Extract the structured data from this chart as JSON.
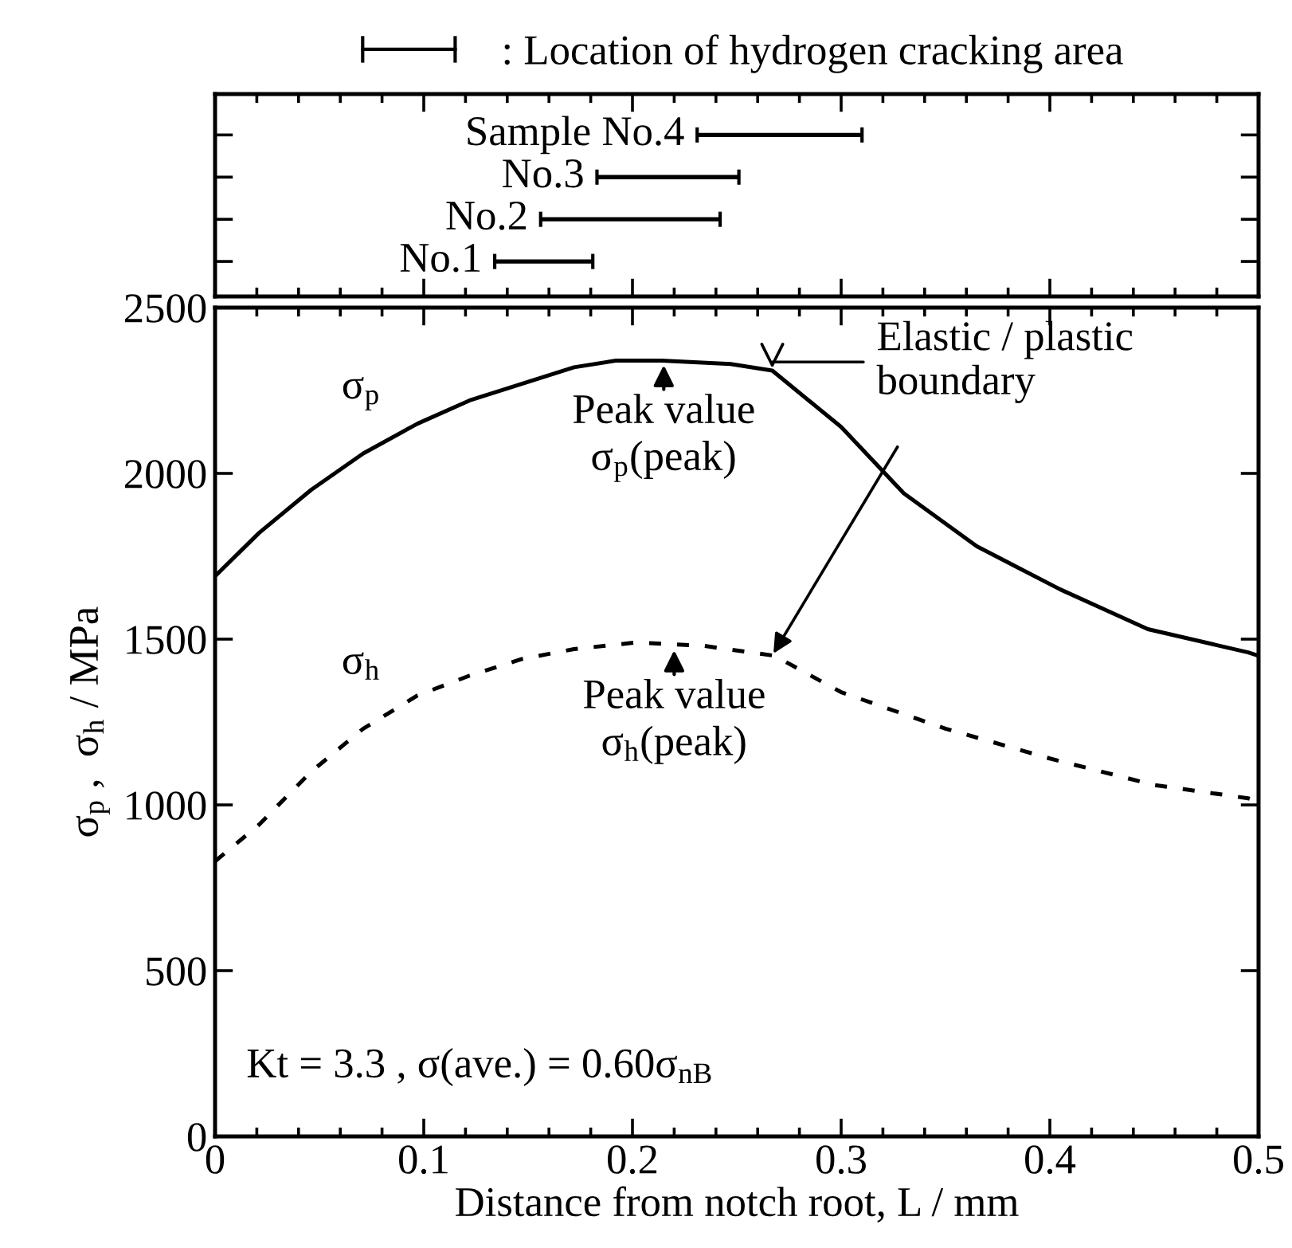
{
  "chart_data": [
    {
      "type": "bar",
      "orientation": "horizontal",
      "categories": [
        null,
        null,
        null,
        null
      ],
      "annotations": [
        {
          "text": "Sample No.4",
          "x": 0.231
        },
        {
          "text": "No.3",
          "x": 0.183
        },
        {
          "text": "No.2",
          "x": 0.156
        },
        {
          "text": "No.1",
          "x": 0.134
        }
      ],
      "series": [
        {
          "name": ": Location of hydrogen cracking area",
          "color": "#000000",
          "values": [
            0.079,
            0.068,
            0.086,
            0.047
          ],
          "base": [
            0.231,
            0.183,
            0.156,
            0.134
          ]
        }
      ],
      "xlim": [
        0,
        0.5
      ],
      "xticks": [
        0,
        0.1,
        0.2,
        0.3,
        0.4,
        0.5
      ],
      "tick_labels": false,
      "legend": "top",
      "grid": false
    },
    {
      "type": "line",
      "xlabel": "Distance from notch root, L / mm",
      "ylabel": "σ$_{p}$ ,  σ$_{h}$ / MPa",
      "series": [
        {
          "name": "σ$_{p}$",
          "color": "#000000",
          "line_style": "solid",
          "x": [
            0,
            0.021,
            0.046,
            0.071,
            0.097,
            0.122,
            0.147,
            0.172,
            0.192,
            0.214,
            0.247,
            0.267,
            0.3,
            0.33,
            0.365,
            0.405,
            0.447,
            0.495,
            0.5
          ],
          "values": [
            1690,
            1820,
            1950,
            2060,
            2150,
            2220,
            2270,
            2320,
            2340,
            2340,
            2330,
            2310,
            2140,
            1940,
            1780,
            1650,
            1530,
            1460,
            1450
          ]
        },
        {
          "name": "σ$_{h}$",
          "color": "#000000",
          "line_style": "dashed",
          "x": [
            0,
            0.021,
            0.046,
            0.071,
            0.097,
            0.122,
            0.147,
            0.172,
            0.202,
            0.234,
            0.268,
            0.3,
            0.35,
            0.4,
            0.45,
            0.495,
            0.5
          ],
          "values": [
            830,
            940,
            1100,
            1230,
            1330,
            1390,
            1440,
            1470,
            1490,
            1480,
            1450,
            1340,
            1230,
            1140,
            1060,
            1020,
            1010
          ]
        }
      ],
      "marker": "none",
      "grid": false,
      "legend": false,
      "xlim": [
        0,
        0.5
      ],
      "xticks": [
        0,
        0.1,
        0.2,
        0.3,
        0.4,
        0.5
      ],
      "ylim": [
        0,
        2500
      ],
      "yticks": [
        0,
        500,
        1000,
        1500,
        2000,
        2500
      ],
      "annotations": [
        {
          "text": "Peak value\nσ$_{p}$(peak)",
          "x": 0.215,
          "y": 2340
        },
        {
          "text": "Peak value\nσ$_{h}$(peak)",
          "x": 0.22,
          "y": 1480
        },
        {
          "text": "Elastic / plastic\nboundary",
          "x": 0.267,
          "y": 2310
        },
        "Kt = 3.3 , σ(ave.) = 0.60σ$_{nB}$"
      ]
    }
  ]
}
